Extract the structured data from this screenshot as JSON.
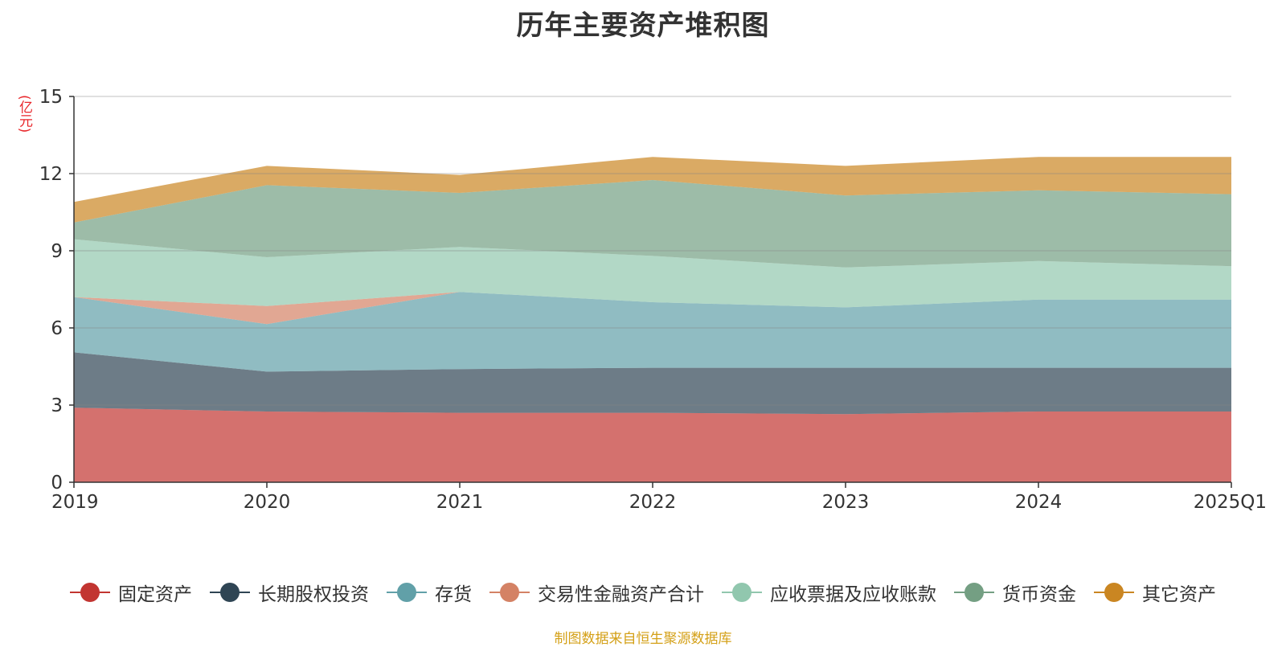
{
  "chart_data": {
    "type": "area",
    "title": "历年主要资产堆积图",
    "ylabel": "(亿元)",
    "xlabel": "",
    "x": [
      "2019",
      "2020",
      "2021",
      "2022",
      "2023",
      "2024",
      "2025Q1"
    ],
    "ylim": [
      0,
      15
    ],
    "yticks": [
      0,
      3,
      6,
      9,
      12,
      15
    ],
    "stacked": true,
    "grid": true,
    "legend_position": "bottom",
    "series": [
      {
        "name": "固定资产",
        "color": "#c23531",
        "values": [
          2.9,
          2.75,
          2.7,
          2.7,
          2.65,
          2.75,
          2.75
        ]
      },
      {
        "name": "长期股权投资",
        "color": "#2f4554",
        "values": [
          2.15,
          1.55,
          1.7,
          1.75,
          1.8,
          1.7,
          1.7
        ]
      },
      {
        "name": "存货",
        "color": "#61a0a8",
        "values": [
          2.15,
          1.85,
          3.0,
          2.55,
          2.35,
          2.65,
          2.65
        ]
      },
      {
        "name": "交易性金融资产合计",
        "color": "#d48265",
        "values": [
          0.0,
          0.7,
          0.0,
          0.0,
          0.0,
          0.0,
          0.0
        ]
      },
      {
        "name": "应收票据及应收账款",
        "color": "#91c7ae",
        "values": [
          2.25,
          1.9,
          1.75,
          1.8,
          1.55,
          1.5,
          1.3
        ]
      },
      {
        "name": "货币资金",
        "color": "#749f83",
        "values": [
          0.65,
          2.8,
          2.1,
          2.95,
          2.8,
          2.75,
          2.8
        ]
      },
      {
        "name": "其它资产",
        "color": "#ca8622",
        "values": [
          0.8,
          0.75,
          0.7,
          0.9,
          1.15,
          1.3,
          1.45
        ]
      }
    ]
  },
  "footer": {
    "source": "制图数据来自恒生聚源数据库"
  }
}
